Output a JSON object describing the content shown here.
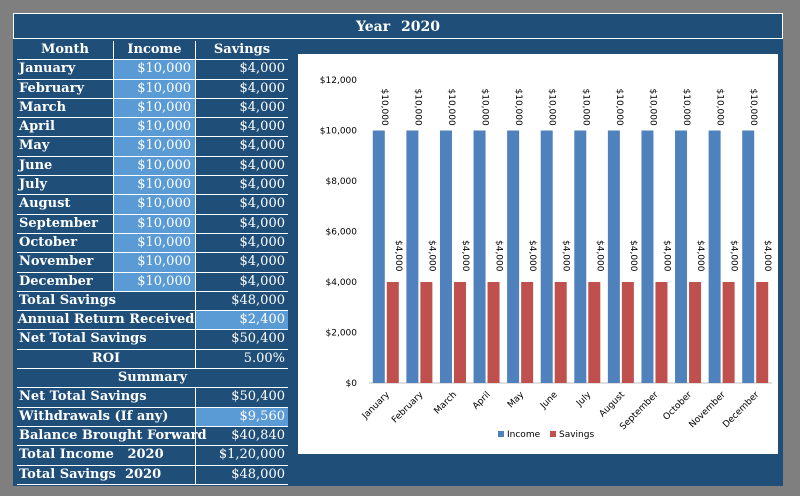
{
  "title": "Year    2020",
  "table": {
    "headers": {
      "month": "Month",
      "income": "Income",
      "savings": "Savings"
    },
    "rows": [
      {
        "month": "January",
        "income": "$10,000",
        "savings": "$4,000"
      },
      {
        "month": "February",
        "income": "$10,000",
        "savings": "$4,000"
      },
      {
        "month": "March",
        "income": "$10,000",
        "savings": "$4,000"
      },
      {
        "month": "April",
        "income": "$10,000",
        "savings": "$4,000"
      },
      {
        "month": "May",
        "income": "$10,000",
        "savings": "$4,000"
      },
      {
        "month": "June",
        "income": "$10,000",
        "savings": "$4,000"
      },
      {
        "month": "July",
        "income": "$10,000",
        "savings": "$4,000"
      },
      {
        "month": "August",
        "income": "$10,000",
        "savings": "$4,000"
      },
      {
        "month": "September",
        "income": "$10,000",
        "savings": "$4,000"
      },
      {
        "month": "October",
        "income": "$10,000",
        "savings": "$4,000"
      },
      {
        "month": "November",
        "income": "$10,000",
        "savings": "$4,000"
      },
      {
        "month": "December",
        "income": "$10,000",
        "savings": "$4,000"
      }
    ]
  },
  "totals": {
    "total_savings_label": "Total Savings",
    "total_savings_value": "$48,000",
    "annual_return_label": "Annual Return Received",
    "annual_return_value": "$2,400",
    "net_total_label": "Net Total Savings",
    "net_total_value": "$50,400",
    "roi_label": "ROI",
    "roi_value": "5.00%"
  },
  "summary": {
    "header": "Summary",
    "net_total_label": "Net Total Savings",
    "net_total_value": "$50,400",
    "withdrawals_label": "Withdrawals (If any)",
    "withdrawals_value": "$9,560",
    "balance_label": "Balance Brought Forward",
    "balance_value": "$40,840",
    "total_income_label": "Total Income   2020",
    "total_income_value": "$1,20,000",
    "total_savings_label": "Total Savings  2020",
    "total_savings_value": "$48,000"
  },
  "colors": {
    "frame": "#1f4e79",
    "income": "#4f81bd",
    "savings": "#c0504d",
    "highlight": "#5b9bd5"
  },
  "chart_data": {
    "type": "bar",
    "categories": [
      "January",
      "February",
      "March",
      "April",
      "May",
      "June",
      "July",
      "August",
      "September",
      "October",
      "November",
      "December"
    ],
    "series": [
      {
        "name": "Income",
        "values": [
          10000,
          10000,
          10000,
          10000,
          10000,
          10000,
          10000,
          10000,
          10000,
          10000,
          10000,
          10000
        ],
        "labels": [
          "$10,000",
          "$10,000",
          "$10,000",
          "$10,000",
          "$10,000",
          "$10,000",
          "$10,000",
          "$10,000",
          "$10,000",
          "$10,000",
          "$10,000",
          "$10,000"
        ]
      },
      {
        "name": "Savings",
        "values": [
          4000,
          4000,
          4000,
          4000,
          4000,
          4000,
          4000,
          4000,
          4000,
          4000,
          4000,
          4000
        ],
        "labels": [
          "$4,000",
          "$4,000",
          "$4,000",
          "$4,000",
          "$4,000",
          "$4,000",
          "$4,000",
          "$4,000",
          "$4,000",
          "$4,000",
          "$4,000",
          "$4,000"
        ]
      }
    ],
    "y_ticks": [
      0,
      2000,
      4000,
      6000,
      8000,
      10000,
      12000
    ],
    "y_tick_labels": [
      "$0",
      "$2,000",
      "$4,000",
      "$6,000",
      "$8,000",
      "$10,000",
      "$12,000"
    ],
    "ylim": [
      0,
      12000
    ],
    "legend_position": "bottom",
    "grid": false
  }
}
